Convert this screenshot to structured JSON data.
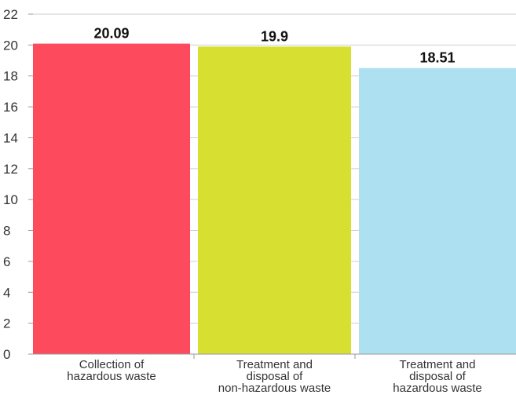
{
  "chart_data": {
    "type": "bar",
    "title": "",
    "xlabel": "",
    "ylabel": "",
    "ylim": [
      0,
      22
    ],
    "yticks": [
      0,
      2,
      4,
      6,
      8,
      10,
      12,
      14,
      16,
      18,
      20,
      22
    ],
    "grid": true,
    "legend": "none",
    "categories": [
      [
        "Collection of",
        "hazardous waste"
      ],
      [
        "Treatment and",
        "disposal of",
        "non-hazardous waste"
      ],
      [
        "Treatment and",
        "disposal of",
        "hazardous waste"
      ]
    ],
    "values": [
      20.09,
      19.9,
      18.51
    ],
    "value_labels": [
      "20.09",
      "19.9",
      "18.51"
    ],
    "colors": [
      "#fd4a5c",
      "#d7df31",
      "#ade0f1"
    ]
  }
}
